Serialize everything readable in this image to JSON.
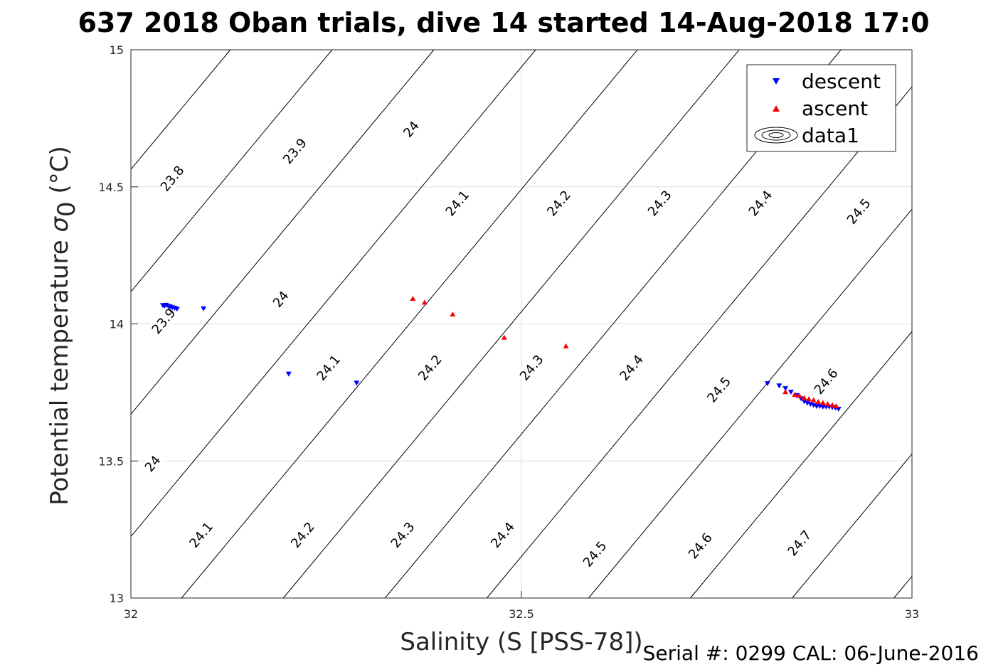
{
  "chart_data": {
    "type": "scatter",
    "title": "637 2018 Oban trials, dive 14 started 14-Aug-2018 17:0",
    "xlabel": "Salinity (S [PSS-78])",
    "ylabel_main": "Potential temperature ",
    "ylabel_sigma": "σ",
    "ylabel_sub": "0",
    "ylabel_unit": " (°C)",
    "xlim": [
      32,
      33
    ],
    "ylim": [
      13,
      15
    ],
    "x_ticks": [
      32,
      32.5,
      33
    ],
    "x_tick_labels": [
      "32",
      "32.5",
      "33"
    ],
    "y_ticks": [
      13,
      13.5,
      14,
      14.5,
      15
    ],
    "y_tick_labels": [
      "13",
      "13.5",
      "14",
      "14.5",
      "15"
    ],
    "grid": true,
    "legend_position": "top-right",
    "legend": [
      {
        "label": "descent",
        "marker": "triangle-down",
        "color": "#0000ff"
      },
      {
        "label": "ascent",
        "marker": "triangle-up",
        "color": "#ff0000"
      },
      {
        "label": "data1",
        "marker": "contour",
        "color": "#000000"
      }
    ],
    "footer": "Serial #: 0299 CAL: 06-June-2016",
    "series": [
      {
        "name": "descent",
        "color": "#0000ff",
        "marker": "triangle-down",
        "x": [
          32.041,
          32.043,
          32.045,
          32.048,
          32.05,
          32.053,
          32.056,
          32.059,
          32.093,
          32.202,
          32.289,
          32.815,
          32.83,
          32.838,
          32.845,
          32.852,
          32.858,
          32.862,
          32.866,
          32.87,
          32.874,
          32.878,
          32.882,
          32.886,
          32.89,
          32.894,
          32.898,
          32.902,
          32.906
        ],
        "y": [
          14.068,
          14.066,
          14.069,
          14.065,
          14.063,
          14.06,
          14.058,
          14.055,
          14.056,
          13.818,
          13.785,
          13.783,
          13.775,
          13.765,
          13.752,
          13.74,
          13.728,
          13.718,
          13.712,
          13.708,
          13.704,
          13.7,
          13.7,
          13.698,
          13.698,
          13.698,
          13.696,
          13.694,
          13.69
        ]
      },
      {
        "name": "ascent",
        "color": "#ff0000",
        "marker": "triangle-up",
        "x": [
          32.361,
          32.376,
          32.412,
          32.478,
          32.557,
          32.838,
          32.85,
          32.856,
          32.862,
          32.868,
          32.874,
          32.88,
          32.886,
          32.892,
          32.898,
          32.903
        ],
        "y": [
          14.092,
          14.078,
          14.035,
          13.95,
          13.919,
          13.752,
          13.742,
          13.738,
          13.73,
          13.726,
          13.722,
          13.716,
          13.712,
          13.708,
          13.704,
          13.7
        ]
      }
    ],
    "contour_levels": [
      23.8,
      23.9,
      24,
      24.1,
      24.2,
      24.3,
      24.4,
      24.5,
      24.6,
      24.7
    ],
    "contour_labels": [
      {
        "level": 23.8,
        "text": "23.8",
        "s": 32.053,
        "t": 14.53
      },
      {
        "level": 23.9,
        "text": "23.9",
        "s": 32.042,
        "t": 14.01
      },
      {
        "level": 23.9,
        "text": "23.9",
        "s": 32.21,
        "t": 14.63
      },
      {
        "level": 24,
        "text": "24",
        "s": 32.028,
        "t": 13.49
      },
      {
        "level": 24,
        "text": "24",
        "s": 32.192,
        "t": 14.09
      },
      {
        "level": 24,
        "text": "24",
        "s": 32.359,
        "t": 14.71
      },
      {
        "level": 24.1,
        "text": "24.1",
        "s": 32.09,
        "t": 13.23
      },
      {
        "level": 24.1,
        "text": "24.1",
        "s": 32.253,
        "t": 13.84
      },
      {
        "level": 24.1,
        "text": "24.1",
        "s": 32.418,
        "t": 14.44
      },
      {
        "level": 24.2,
        "text": "24.2",
        "s": 32.22,
        "t": 13.23
      },
      {
        "level": 24.2,
        "text": "24.2",
        "s": 32.383,
        "t": 13.84
      },
      {
        "level": 24.2,
        "text": "24.2",
        "s": 32.548,
        "t": 14.44
      },
      {
        "level": 24.3,
        "text": "24.3",
        "s": 32.348,
        "t": 13.23
      },
      {
        "level": 24.3,
        "text": "24.3",
        "s": 32.513,
        "t": 13.84
      },
      {
        "level": 24.3,
        "text": "24.3",
        "s": 32.677,
        "t": 14.44
      },
      {
        "level": 24.4,
        "text": "24.4",
        "s": 32.476,
        "t": 13.23
      },
      {
        "level": 24.4,
        "text": "24.4",
        "s": 32.641,
        "t": 13.84
      },
      {
        "level": 24.4,
        "text": "24.4",
        "s": 32.806,
        "t": 14.44
      },
      {
        "level": 24.5,
        "text": "24.5",
        "s": 32.594,
        "t": 13.16
      },
      {
        "level": 24.5,
        "text": "24.5",
        "s": 32.753,
        "t": 13.76
      },
      {
        "level": 24.5,
        "text": "24.5",
        "s": 32.932,
        "t": 14.41
      },
      {
        "level": 24.6,
        "text": "24.6",
        "s": 32.729,
        "t": 13.19
      },
      {
        "level": 24.6,
        "text": "24.6",
        "s": 32.89,
        "t": 13.79
      },
      {
        "level": 24.7,
        "text": "24.7",
        "s": 32.856,
        "t": 13.2
      }
    ]
  }
}
